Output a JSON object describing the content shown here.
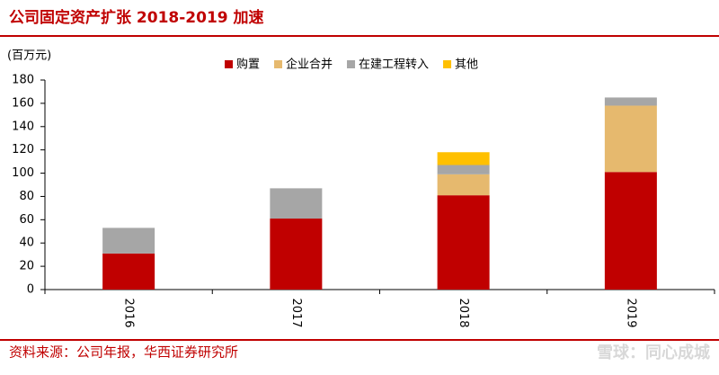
{
  "chart_data": {
    "type": "stacked_bar",
    "title": "公司固定资产扩张 2018-2019 加速",
    "y_label": "(百万元)",
    "categories": [
      "2016",
      "2017",
      "2018",
      "2019"
    ],
    "series": [
      {
        "name": "购置",
        "color": "#c00000",
        "values": [
          31,
          61,
          81,
          101
        ]
      },
      {
        "name": "企业合并",
        "color": "#e6b96e",
        "values": [
          0,
          0,
          18,
          57
        ]
      },
      {
        "name": "在建工程转入",
        "color": "#a6a6a6",
        "values": [
          22,
          26,
          8,
          7
        ]
      },
      {
        "name": "其他",
        "color": "#ffc000",
        "values": [
          0,
          0,
          11,
          0
        ]
      }
    ],
    "ylim": [
      0,
      180
    ],
    "yticks": [
      0,
      20,
      40,
      60,
      80,
      100,
      120,
      140,
      160,
      180
    ],
    "source": "资料来源：公司年报，华西证券研究所",
    "watermark": "雪球：同心成城"
  }
}
